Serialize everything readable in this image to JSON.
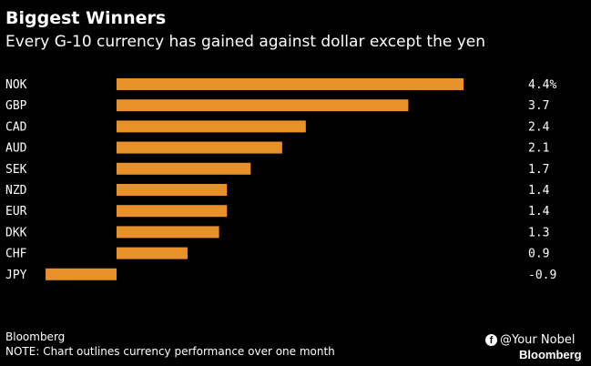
{
  "header": {
    "title": "Biggest Winners",
    "subtitle": "Every G-10 currency has gained against dollar except the yen"
  },
  "footer": {
    "source": "Bloomberg",
    "note": "NOTE: Chart outlines currency performance over one month",
    "social_handle": "@Your Nobel",
    "brand": "Bloomberg"
  },
  "colors": {
    "bar": "#E8912A",
    "background": "#000000",
    "text": "#FFFFFF"
  },
  "icons": {
    "social": "facebook-icon"
  },
  "chart_data": {
    "type": "bar",
    "orientation": "horizontal",
    "title": "Biggest Winners",
    "subtitle": "Every G-10 currency has gained against dollar except the yen",
    "categories": [
      "NOK",
      "GBP",
      "CAD",
      "AUD",
      "SEK",
      "NZD",
      "EUR",
      "DKK",
      "CHF",
      "JPY"
    ],
    "values": [
      4.4,
      3.7,
      2.4,
      2.1,
      1.7,
      1.4,
      1.4,
      1.3,
      0.9,
      -0.9
    ],
    "value_labels": [
      "4.4%",
      "3.7",
      "2.4",
      "2.1",
      "1.7",
      "1.4",
      "1.4",
      "1.3",
      "0.9",
      "-0.9"
    ],
    "xlim": [
      -0.9,
      4.4
    ],
    "grid": false,
    "legend": "none"
  }
}
